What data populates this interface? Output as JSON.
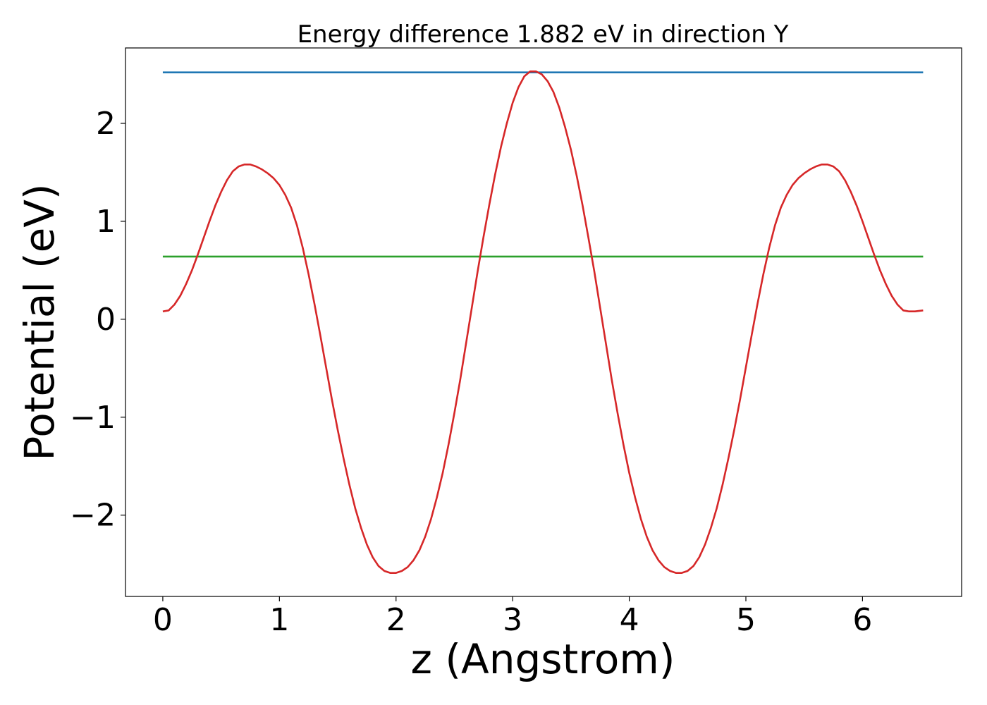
{
  "chart_data": {
    "type": "line",
    "title": "Energy difference 1.882 eV in direction Y",
    "xlabel": "z (Angstrom)",
    "ylabel": "Potential (eV)",
    "xlim": [
      -0.32,
      6.85
    ],
    "ylim": [
      -2.83,
      2.77
    ],
    "x_ticks": [
      0,
      1,
      2,
      3,
      4,
      5,
      6
    ],
    "y_ticks": [
      -2,
      -1,
      0,
      1,
      2
    ],
    "grid": false,
    "legend": "none",
    "series": [
      {
        "color": "#1f77b4",
        "points": [
          [
            0,
            2.52
          ],
          [
            6.52,
            2.52
          ]
        ]
      },
      {
        "color": "#2ca02c",
        "points": [
          [
            0,
            0.64
          ],
          [
            6.52,
            0.64
          ]
        ]
      },
      {
        "color": "#d62728",
        "points": [
          [
            0.0,
            0.08
          ],
          [
            0.05,
            0.09
          ],
          [
            0.1,
            0.15
          ],
          [
            0.15,
            0.24
          ],
          [
            0.2,
            0.36
          ],
          [
            0.25,
            0.5
          ],
          [
            0.3,
            0.66
          ],
          [
            0.35,
            0.83
          ],
          [
            0.4,
            1.0
          ],
          [
            0.45,
            1.16
          ],
          [
            0.5,
            1.3
          ],
          [
            0.55,
            1.42
          ],
          [
            0.6,
            1.51
          ],
          [
            0.65,
            1.56
          ],
          [
            0.7,
            1.58
          ],
          [
            0.75,
            1.58
          ],
          [
            0.8,
            1.56
          ],
          [
            0.85,
            1.53
          ],
          [
            0.9,
            1.49
          ],
          [
            0.95,
            1.44
          ],
          [
            1.0,
            1.37
          ],
          [
            1.05,
            1.27
          ],
          [
            1.1,
            1.14
          ],
          [
            1.15,
            0.96
          ],
          [
            1.2,
            0.73
          ],
          [
            1.25,
            0.46
          ],
          [
            1.3,
            0.16
          ],
          [
            1.35,
            -0.16
          ],
          [
            1.4,
            -0.49
          ],
          [
            1.45,
            -0.82
          ],
          [
            1.5,
            -1.13
          ],
          [
            1.55,
            -1.42
          ],
          [
            1.6,
            -1.69
          ],
          [
            1.65,
            -1.93
          ],
          [
            1.7,
            -2.13
          ],
          [
            1.75,
            -2.3
          ],
          [
            1.8,
            -2.43
          ],
          [
            1.85,
            -2.52
          ],
          [
            1.9,
            -2.57
          ],
          [
            1.95,
            -2.59
          ],
          [
            2.0,
            -2.59
          ],
          [
            2.05,
            -2.57
          ],
          [
            2.1,
            -2.53
          ],
          [
            2.15,
            -2.46
          ],
          [
            2.2,
            -2.36
          ],
          [
            2.25,
            -2.22
          ],
          [
            2.3,
            -2.04
          ],
          [
            2.35,
            -1.82
          ],
          [
            2.4,
            -1.57
          ],
          [
            2.45,
            -1.28
          ],
          [
            2.5,
            -0.96
          ],
          [
            2.55,
            -0.62
          ],
          [
            2.6,
            -0.25
          ],
          [
            2.65,
            0.12
          ],
          [
            2.7,
            0.49
          ],
          [
            2.75,
            0.84
          ],
          [
            2.8,
            1.17
          ],
          [
            2.85,
            1.48
          ],
          [
            2.9,
            1.76
          ],
          [
            2.95,
            2.0
          ],
          [
            3.0,
            2.21
          ],
          [
            3.05,
            2.37
          ],
          [
            3.1,
            2.48
          ],
          [
            3.15,
            2.53
          ],
          [
            3.2,
            2.53
          ],
          [
            3.25,
            2.5
          ],
          [
            3.3,
            2.43
          ],
          [
            3.35,
            2.32
          ],
          [
            3.4,
            2.16
          ],
          [
            3.45,
            1.96
          ],
          [
            3.5,
            1.73
          ],
          [
            3.55,
            1.46
          ],
          [
            3.6,
            1.16
          ],
          [
            3.65,
            0.83
          ],
          [
            3.7,
            0.49
          ],
          [
            3.75,
            0.12
          ],
          [
            3.8,
            -0.25
          ],
          [
            3.85,
            -0.62
          ],
          [
            3.9,
            -0.96
          ],
          [
            3.95,
            -1.28
          ],
          [
            4.0,
            -1.57
          ],
          [
            4.05,
            -1.82
          ],
          [
            4.1,
            -2.04
          ],
          [
            4.15,
            -2.22
          ],
          [
            4.2,
            -2.36
          ],
          [
            4.25,
            -2.46
          ],
          [
            4.3,
            -2.53
          ],
          [
            4.35,
            -2.57
          ],
          [
            4.4,
            -2.59
          ],
          [
            4.45,
            -2.59
          ],
          [
            4.5,
            -2.57
          ],
          [
            4.55,
            -2.52
          ],
          [
            4.6,
            -2.43
          ],
          [
            4.65,
            -2.3
          ],
          [
            4.7,
            -2.13
          ],
          [
            4.75,
            -1.93
          ],
          [
            4.8,
            -1.69
          ],
          [
            4.85,
            -1.42
          ],
          [
            4.9,
            -1.13
          ],
          [
            4.95,
            -0.82
          ],
          [
            5.0,
            -0.49
          ],
          [
            5.05,
            -0.16
          ],
          [
            5.1,
            0.16
          ],
          [
            5.15,
            0.46
          ],
          [
            5.2,
            0.73
          ],
          [
            5.25,
            0.96
          ],
          [
            5.3,
            1.14
          ],
          [
            5.35,
            1.27
          ],
          [
            5.4,
            1.37
          ],
          [
            5.45,
            1.44
          ],
          [
            5.5,
            1.49
          ],
          [
            5.55,
            1.53
          ],
          [
            5.6,
            1.56
          ],
          [
            5.65,
            1.58
          ],
          [
            5.7,
            1.58
          ],
          [
            5.75,
            1.56
          ],
          [
            5.8,
            1.51
          ],
          [
            5.85,
            1.42
          ],
          [
            5.9,
            1.3
          ],
          [
            5.95,
            1.16
          ],
          [
            6.0,
            1.0
          ],
          [
            6.05,
            0.83
          ],
          [
            6.1,
            0.66
          ],
          [
            6.15,
            0.5
          ],
          [
            6.2,
            0.36
          ],
          [
            6.25,
            0.24
          ],
          [
            6.3,
            0.15
          ],
          [
            6.35,
            0.09
          ],
          [
            6.4,
            0.08
          ],
          [
            6.45,
            0.08
          ],
          [
            6.52,
            0.09
          ]
        ]
      }
    ]
  }
}
